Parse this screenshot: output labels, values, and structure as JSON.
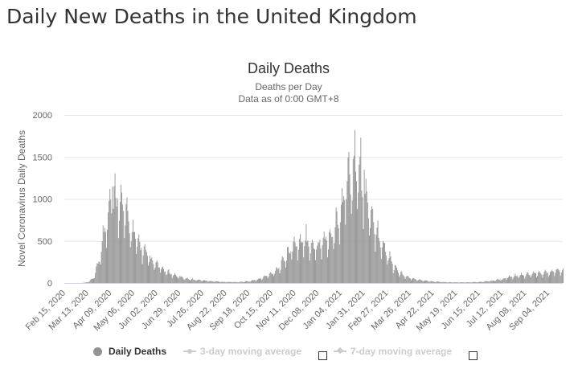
{
  "page": {
    "heading": "Daily New Deaths in the United Kingdom"
  },
  "chart_data": {
    "type": "bar",
    "title": "Daily Deaths",
    "subtitle_lines": [
      "Deaths per Day",
      "Data as of 0:00 GMT+8"
    ],
    "xlabel": "",
    "ylabel": "Novel Coronavirus Daily Deaths",
    "ylim": [
      0,
      2000
    ],
    "yticks": [
      0,
      500,
      1000,
      1500,
      2000
    ],
    "grid": true,
    "legend_position": "bottom",
    "bar_color": "#929292",
    "x_start": "Feb 15, 2020",
    "x_end": "Sep 21, 2021",
    "x_ticks": [
      "Feb 15, 2020",
      "Mar 13, 2020",
      "Apr 09, 2020",
      "May 06, 2020",
      "Jun 02, 2020",
      "Jun 29, 2020",
      "Jul 26, 2020",
      "Aug 22, 2020",
      "Sep 18, 2020",
      "Oct 15, 2020",
      "Nov 11, 2020",
      "Dec 08, 2020",
      "Jan 04, 2021",
      "Jan 31, 2021",
      "Feb 27, 2021",
      "Mar 26, 2021",
      "Apr 22, 2021",
      "May 19, 2021",
      "Jun 15, 2021",
      "Jul 12, 2021",
      "Aug 08, 2021",
      "Sep 04, 2021"
    ],
    "series": [
      {
        "name": "Daily Deaths",
        "visible": true,
        "anchors": [
          [
            "Feb 15, 2020",
            0
          ],
          [
            "Mar 06, 2020",
            0
          ],
          [
            "Mar 13, 2020",
            8
          ],
          [
            "Mar 20, 2020",
            60
          ],
          [
            "Mar 27, 2020",
            290
          ],
          [
            "Apr 03, 2020",
            700
          ],
          [
            "Apr 09, 2020",
            950
          ],
          [
            "Apr 15, 2020",
            1000
          ],
          [
            "Apr 21, 2020",
            950
          ],
          [
            "Apr 28, 2020",
            750
          ],
          [
            "May 06, 2020",
            560
          ],
          [
            "May 13, 2020",
            440
          ],
          [
            "May 20, 2020",
            340
          ],
          [
            "May 27, 2020",
            250
          ],
          [
            "Jun 02, 2020",
            210
          ],
          [
            "Jun 10, 2020",
            150
          ],
          [
            "Jun 18, 2020",
            110
          ],
          [
            "Jun 29, 2020",
            70
          ],
          [
            "Jul 10, 2020",
            45
          ],
          [
            "Jul 26, 2020",
            30
          ],
          [
            "Aug 10, 2020",
            18
          ],
          [
            "Aug 22, 2020",
            12
          ],
          [
            "Sep 05, 2020",
            10
          ],
          [
            "Sep 18, 2020",
            20
          ],
          [
            "Sep 30, 2020",
            45
          ],
          [
            "Oct 15, 2020",
            110
          ],
          [
            "Oct 25, 2020",
            200
          ],
          [
            "Nov 03, 2020",
            360
          ],
          [
            "Nov 11, 2020",
            450
          ],
          [
            "Nov 20, 2020",
            480
          ],
          [
            "Nov 30, 2020",
            440
          ],
          [
            "Dec 08, 2020",
            450
          ],
          [
            "Dec 16, 2020",
            500
          ],
          [
            "Dec 25, 2020",
            560
          ],
          [
            "Jan 04, 2021",
            850
          ],
          [
            "Jan 12, 2021",
            1150
          ],
          [
            "Jan 20, 2021",
            1400
          ],
          [
            "Jan 25, 2021",
            1250
          ],
          [
            "Jan 31, 2021",
            1050
          ],
          [
            "Feb 08, 2021",
            800
          ],
          [
            "Feb 16, 2021",
            560
          ],
          [
            "Feb 27, 2021",
            330
          ],
          [
            "Mar 08, 2021",
            170
          ],
          [
            "Mar 18, 2021",
            90
          ],
          [
            "Mar 26, 2021",
            55
          ],
          [
            "Apr 05, 2021",
            35
          ],
          [
            "Apr 22, 2021",
            18
          ],
          [
            "May 05, 2021",
            10
          ],
          [
            "May 19, 2021",
            7
          ],
          [
            "Jun 01, 2021",
            8
          ],
          [
            "Jun 15, 2021",
            12
          ],
          [
            "Jun 30, 2021",
            25
          ],
          [
            "Jul 12, 2021",
            45
          ],
          [
            "Jul 25, 2021",
            80
          ],
          [
            "Aug 08, 2021",
            95
          ],
          [
            "Aug 20, 2021",
            110
          ],
          [
            "Sep 04, 2021",
            120
          ],
          [
            "Sep 12, 2021",
            140
          ],
          [
            "Sep 21, 2021",
            150
          ]
        ],
        "peaks": [
          [
            "Apr 08, 2020",
            1120
          ],
          [
            "Apr 11, 2020",
            1150
          ],
          [
            "Apr 21, 2020",
            1170
          ],
          [
            "Jan 20, 2021",
            1820
          ],
          [
            "Jan 27, 2021",
            1730
          ],
          [
            "Jan 13, 2021",
            1560
          ],
          [
            "Jan 31, 2021",
            1350
          ],
          [
            "Nov 24, 2020",
            700
          ]
        ]
      },
      {
        "name": "3-day moving average",
        "visible": false
      },
      {
        "name": "7-day moving average",
        "visible": false
      }
    ]
  }
}
